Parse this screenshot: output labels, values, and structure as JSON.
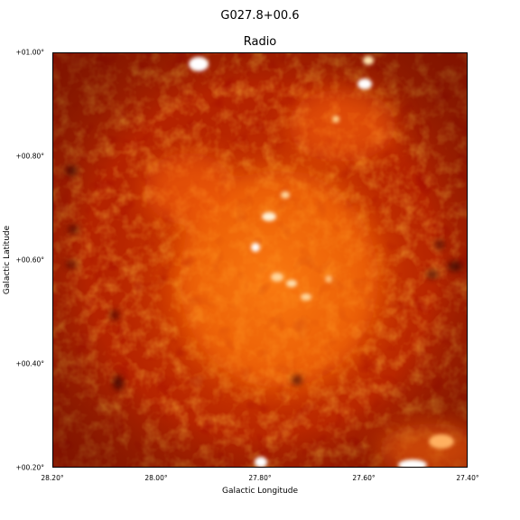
{
  "figure": {
    "suptitle": "G027.8+00.6",
    "title": "Radio",
    "xlabel": "Galactic Longitude",
    "ylabel": "Galactic Latitude",
    "colormap": "gist_heat",
    "colors": {
      "background": "#b22000",
      "dark": "#6a0800",
      "mid": "#d84a00",
      "bright": "#ff9a2a",
      "hot": "#ffffff"
    }
  },
  "axes": {
    "xticks": [
      "28.20°",
      "28.00°",
      "27.80°",
      "27.60°",
      "27.40°"
    ],
    "yticks": [
      "+01.00°",
      "+00.80°",
      "+00.60°",
      "+00.40°",
      "+00.20°"
    ]
  }
}
